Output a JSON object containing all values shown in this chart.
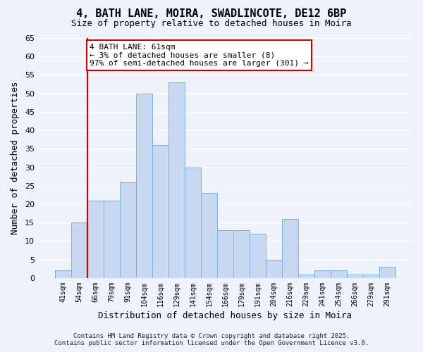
{
  "title1": "4, BATH LANE, MOIRA, SWADLINCOTE, DE12 6BP",
  "title2": "Size of property relative to detached houses in Moira",
  "xlabel": "Distribution of detached houses by size in Moira",
  "ylabel": "Number of detached properties",
  "categories": [
    "41sqm",
    "54sqm",
    "66sqm",
    "79sqm",
    "91sqm",
    "104sqm",
    "116sqm",
    "129sqm",
    "141sqm",
    "154sqm",
    "166sqm",
    "179sqm",
    "191sqm",
    "204sqm",
    "216sqm",
    "229sqm",
    "241sqm",
    "254sqm",
    "266sqm",
    "279sqm",
    "291sqm"
  ],
  "values": [
    2,
    15,
    21,
    21,
    26,
    50,
    36,
    53,
    30,
    23,
    13,
    13,
    12,
    5,
    16,
    1,
    2,
    2,
    1,
    1,
    3
  ],
  "bar_color": "#c8d8f0",
  "bar_edge_color": "#7bafd4",
  "bg_color": "#eef2fb",
  "grid_color": "#ffffff",
  "annotation_box_text": "4 BATH LANE: 61sqm\n← 3% of detached houses are smaller (8)\n97% of semi-detached houses are larger (301) →",
  "annotation_box_color": "#ffffff",
  "annotation_box_edge_color": "#cc0000",
  "annotation_line_color": "#cc0000",
  "red_line_index": 2,
  "ylim": [
    0,
    65
  ],
  "yticks": [
    0,
    5,
    10,
    15,
    20,
    25,
    30,
    35,
    40,
    45,
    50,
    55,
    60,
    65
  ],
  "footer1": "Contains HM Land Registry data © Crown copyright and database right 2025.",
  "footer2": "Contains public sector information licensed under the Open Government Licence v3.0."
}
